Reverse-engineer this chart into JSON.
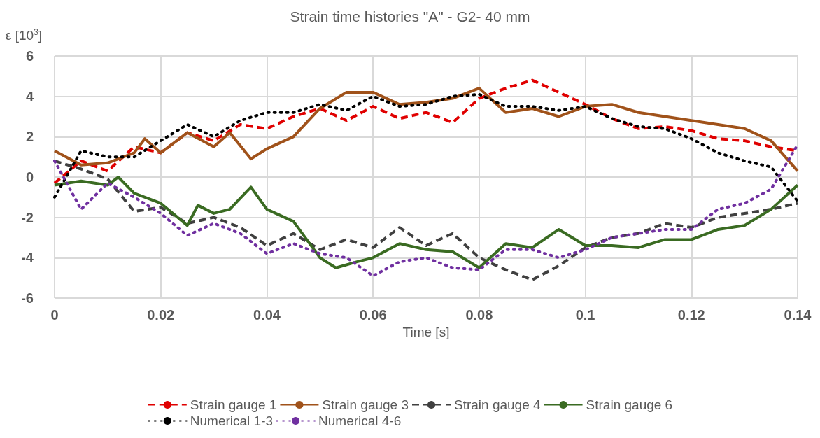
{
  "chart_data": {
    "type": "line",
    "title": "Strain time histories \"A\" - G2- 40 mm",
    "xlabel": "Time [s]",
    "ylabel": "ε [10$^{3}$]",
    "xlim": [
      0,
      0.14
    ],
    "xticks": [
      0,
      0.02,
      0.04,
      0.06,
      0.08,
      0.1,
      0.12,
      0.14
    ],
    "ylim": [
      -6,
      6
    ],
    "yticks": [
      -6,
      -4,
      -2,
      0,
      2,
      4,
      6
    ],
    "grid": true,
    "legend": "bottom",
    "marker": "none",
    "series": [
      {
        "name": "Strain gauge 1",
        "color": "#e00000",
        "line_style": "dashed",
        "x": [
          0,
          0.005,
          0.01,
          0.015,
          0.02,
          0.025,
          0.03,
          0.035,
          0.04,
          0.045,
          0.05,
          0.055,
          0.06,
          0.065,
          0.07,
          0.075,
          0.08,
          0.085,
          0.09,
          0.095,
          0.1,
          0.105,
          0.11,
          0.115,
          0.12,
          0.125,
          0.13,
          0.135,
          0.14
        ],
        "values": [
          -0.3,
          0.8,
          0.3,
          1.5,
          1.2,
          2.2,
          1.8,
          2.6,
          2.4,
          3.0,
          3.4,
          2.8,
          3.5,
          2.9,
          3.2,
          2.7,
          3.9,
          4.4,
          4.8,
          4.2,
          3.6,
          2.9,
          2.4,
          2.5,
          2.3,
          1.9,
          1.8,
          1.5,
          1.3
        ]
      },
      {
        "name": "Strain gauge 3",
        "color": "#a0521a",
        "line_style": "solid",
        "x": [
          0,
          0.005,
          0.01,
          0.015,
          0.017,
          0.02,
          0.025,
          0.03,
          0.033,
          0.037,
          0.04,
          0.045,
          0.05,
          0.055,
          0.06,
          0.065,
          0.07,
          0.075,
          0.08,
          0.085,
          0.09,
          0.095,
          0.1,
          0.105,
          0.11,
          0.115,
          0.12,
          0.125,
          0.13,
          0.135,
          0.14
        ],
        "values": [
          1.3,
          0.6,
          0.7,
          1.2,
          1.9,
          1.2,
          2.2,
          1.5,
          2.2,
          0.9,
          1.4,
          2.0,
          3.4,
          4.2,
          4.2,
          3.6,
          3.7,
          3.9,
          4.4,
          3.2,
          3.4,
          3.0,
          3.5,
          3.6,
          3.2,
          3.0,
          2.8,
          2.6,
          2.4,
          1.8,
          0.3
        ]
      },
      {
        "name": "Strain gauge 4",
        "color": "#404040",
        "line_style": "dashed",
        "x": [
          0,
          0.005,
          0.01,
          0.015,
          0.02,
          0.025,
          0.03,
          0.035,
          0.04,
          0.045,
          0.05,
          0.055,
          0.06,
          0.065,
          0.07,
          0.075,
          0.08,
          0.085,
          0.09,
          0.095,
          0.1,
          0.105,
          0.11,
          0.115,
          0.12,
          0.125,
          0.13,
          0.135,
          0.14
        ],
        "values": [
          0.8,
          0.4,
          -0.1,
          -1.7,
          -1.5,
          -2.3,
          -2.0,
          -2.5,
          -3.4,
          -2.8,
          -3.6,
          -3.1,
          -3.5,
          -2.5,
          -3.4,
          -2.8,
          -4.0,
          -4.6,
          -5.1,
          -4.4,
          -3.5,
          -3.0,
          -2.8,
          -2.3,
          -2.5,
          -2.0,
          -1.8,
          -1.6,
          -1.3
        ]
      },
      {
        "name": "Strain gauge 6",
        "color": "#3a6b22",
        "line_style": "solid",
        "x": [
          0,
          0.005,
          0.01,
          0.012,
          0.015,
          0.02,
          0.025,
          0.027,
          0.03,
          0.033,
          0.037,
          0.04,
          0.045,
          0.05,
          0.053,
          0.057,
          0.06,
          0.065,
          0.07,
          0.075,
          0.08,
          0.085,
          0.09,
          0.095,
          0.1,
          0.105,
          0.11,
          0.115,
          0.12,
          0.125,
          0.13,
          0.135,
          0.14
        ],
        "values": [
          -0.4,
          -0.2,
          -0.4,
          0,
          -0.8,
          -1.3,
          -2.4,
          -1.4,
          -1.8,
          -1.6,
          -0.5,
          -1.6,
          -2.2,
          -4.0,
          -4.5,
          -4.2,
          -4.0,
          -3.3,
          -3.6,
          -3.7,
          -4.5,
          -3.3,
          -3.5,
          -2.6,
          -3.4,
          -3.4,
          -3.5,
          -3.1,
          -3.1,
          -2.6,
          -2.4,
          -1.6,
          -0.4
        ]
      },
      {
        "name": "Numerical 1-3",
        "color": "#000000",
        "line_style": "dotted",
        "x": [
          0,
          0.005,
          0.01,
          0.015,
          0.02,
          0.025,
          0.03,
          0.035,
          0.04,
          0.045,
          0.05,
          0.055,
          0.06,
          0.065,
          0.07,
          0.075,
          0.08,
          0.085,
          0.09,
          0.095,
          0.1,
          0.105,
          0.11,
          0.115,
          0.12,
          0.125,
          0.13,
          0.135,
          0.14
        ],
        "values": [
          -1.0,
          1.3,
          1.0,
          1.0,
          1.8,
          2.6,
          2.0,
          2.8,
          3.2,
          3.2,
          3.6,
          3.3,
          4.0,
          3.5,
          3.6,
          4.0,
          4.1,
          3.5,
          3.5,
          3.3,
          3.5,
          2.9,
          2.5,
          2.4,
          1.9,
          1.2,
          0.8,
          0.5,
          -1.2
        ]
      },
      {
        "name": "Numerical 4-6",
        "color": "#7030a0",
        "line_style": "dotted",
        "x": [
          0,
          0.005,
          0.01,
          0.015,
          0.02,
          0.025,
          0.03,
          0.035,
          0.04,
          0.045,
          0.05,
          0.055,
          0.06,
          0.065,
          0.07,
          0.075,
          0.08,
          0.085,
          0.09,
          0.095,
          0.1,
          0.105,
          0.11,
          0.115,
          0.12,
          0.125,
          0.13,
          0.135,
          0.14
        ],
        "values": [
          0.8,
          -1.6,
          -0.3,
          -1.0,
          -1.8,
          -2.9,
          -2.3,
          -2.8,
          -3.8,
          -3.3,
          -3.8,
          -4.0,
          -4.9,
          -4.2,
          -4.0,
          -4.5,
          -4.6,
          -3.6,
          -3.6,
          -4.0,
          -3.6,
          -3.0,
          -2.8,
          -2.6,
          -2.6,
          -1.6,
          -1.3,
          -0.6,
          1.6
        ]
      }
    ]
  }
}
